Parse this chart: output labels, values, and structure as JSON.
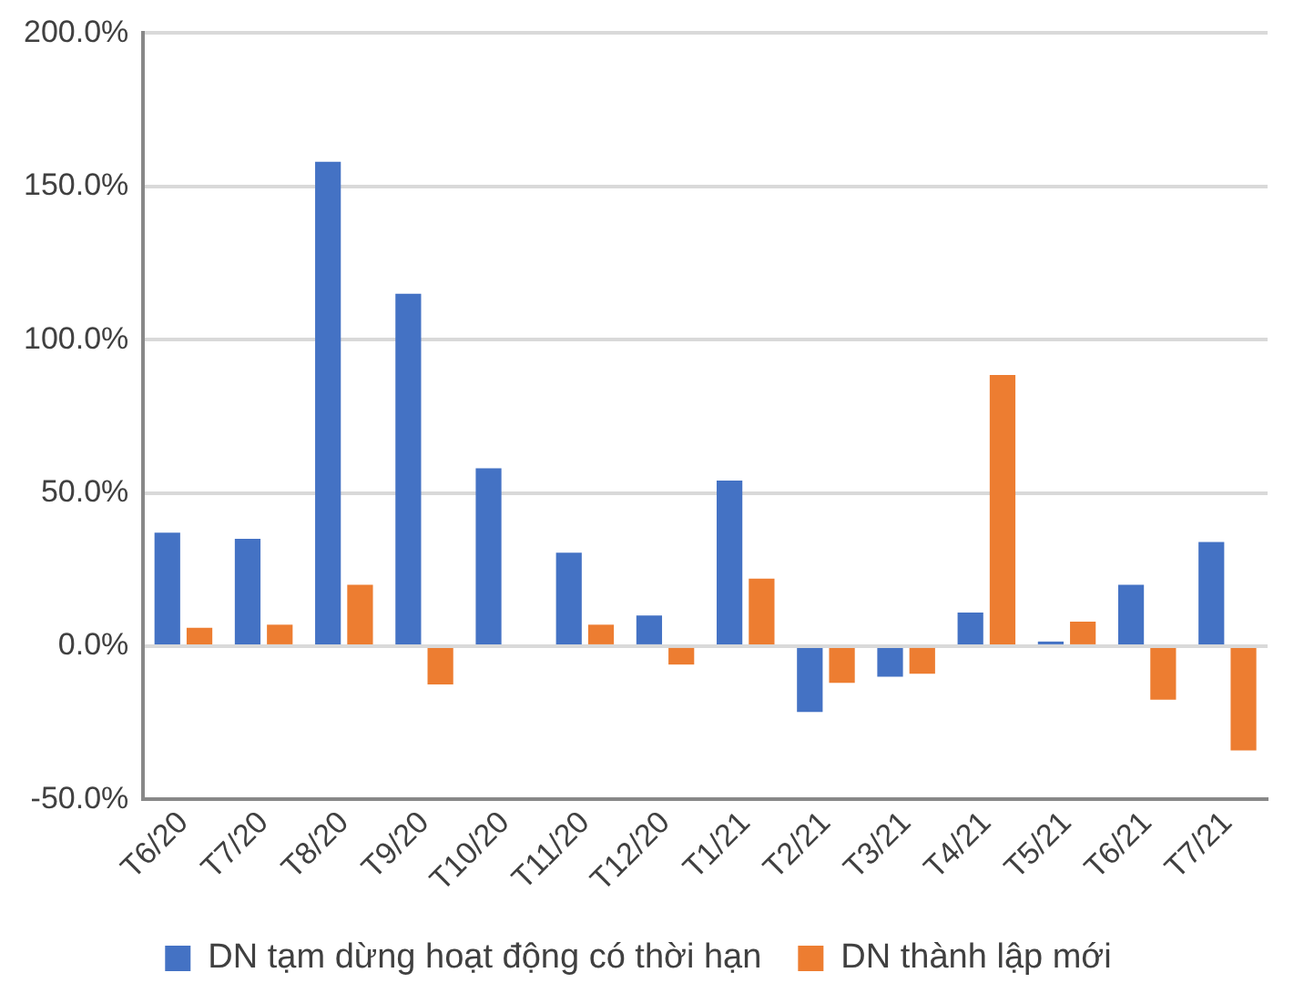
{
  "chart_data": {
    "type": "bar",
    "categories": [
      "T6/20",
      "T7/20",
      "T8/20",
      "T9/20",
      "T10/20",
      "T11/20",
      "T12/20",
      "T1/21",
      "T2/21",
      "T3/21",
      "T4/21",
      "T5/21",
      "T6/21",
      "T7/21"
    ],
    "series": [
      {
        "name": "DN tạm dừng hoạt động có thời hạn",
        "color": "#4472c4",
        "values": [
          37,
          35,
          158,
          115,
          58,
          30.5,
          10,
          54,
          -21.5,
          -10,
          11,
          1.5,
          20,
          34
        ]
      },
      {
        "name": "DN thành lập mới",
        "color": "#ed7d31",
        "values": [
          6,
          7,
          20,
          -12.5,
          0,
          7,
          -6,
          22,
          -12,
          -9,
          88.5,
          8,
          -17.5,
          -34
        ]
      }
    ],
    "ylim": [
      -50,
      200
    ],
    "yticks": [
      {
        "value": -50,
        "label": "-50.0%"
      },
      {
        "value": 0,
        "label": "0.0%"
      },
      {
        "value": 50,
        "label": "50.0%"
      },
      {
        "value": 100,
        "label": "100.0%"
      },
      {
        "value": 150,
        "label": "150.0%"
      },
      {
        "value": 200,
        "label": "200.0%"
      }
    ],
    "grid": "y",
    "legend": "bottom"
  }
}
